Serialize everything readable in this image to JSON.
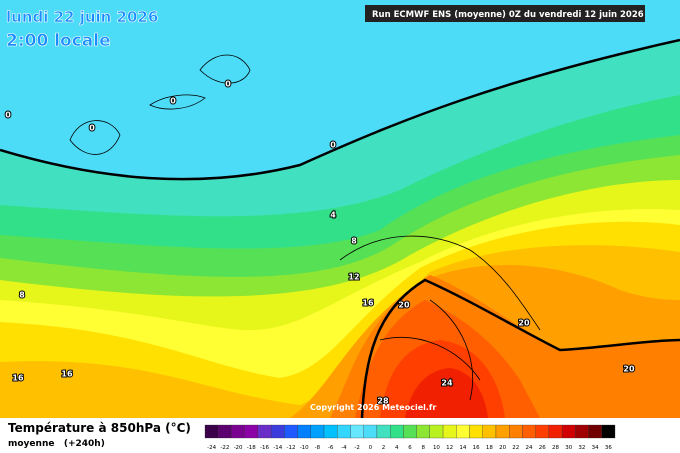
{
  "header": {
    "date": "lundi 22 juin 2026",
    "time": "2:00 locale",
    "run": "Run ECMWF ENS (moyenne) 0Z du vendredi 12 juin 2026"
  },
  "map": {
    "contour_labels": [
      0,
      0,
      0,
      0,
      0,
      4,
      8,
      8,
      12,
      16,
      16,
      16,
      20,
      20,
      20,
      24,
      28
    ],
    "copyright": "Copyright 2026 Meteociel.fr"
  },
  "legend": {
    "title": "Température à 850hPa (°C)",
    "subtitle": "moyenne   (+240h)",
    "scale": [
      -24,
      -22,
      -20,
      -18,
      -16,
      -14,
      -12,
      -10,
      -8,
      -6,
      -4,
      -2,
      0,
      2,
      4,
      6,
      8,
      10,
      12,
      14,
      16,
      18,
      20,
      22,
      24,
      26,
      28,
      30,
      32,
      34,
      36
    ],
    "colors": [
      "#3a004a",
      "#5c0070",
      "#7a0090",
      "#8c00a8",
      "#6a2dc8",
      "#3c3cdc",
      "#1e5aff",
      "#0080ff",
      "#00a0ff",
      "#00c0ff",
      "#33d6ff",
      "#66e6ff",
      "#4ddcf8",
      "#40e0c0",
      "#33e08a",
      "#55e055",
      "#8ce633",
      "#b8f020",
      "#e6f51a",
      "#ffff33",
      "#ffe000",
      "#ffc000",
      "#ff9f00",
      "#ff7f00",
      "#ff5f00",
      "#ff3f00",
      "#f02000",
      "#d00000",
      "#a00000",
      "#700000",
      "#000000"
    ]
  }
}
